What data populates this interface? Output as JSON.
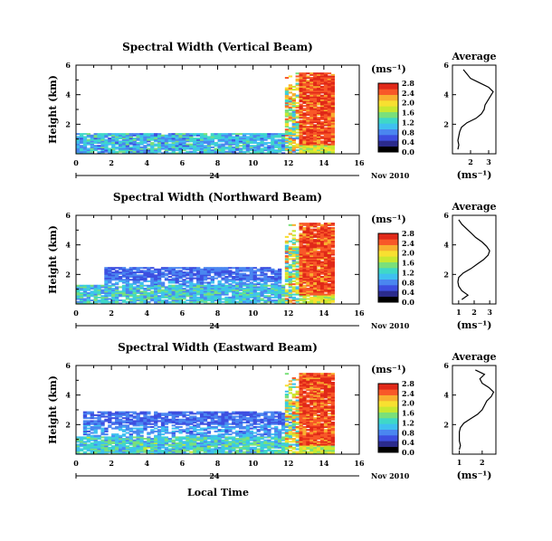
{
  "figure": {
    "xlabel": "Local Time",
    "date_day": "24",
    "date_label": "Nov 2010"
  },
  "colors": {
    "palette": [
      "#000000",
      "#2b2b8c",
      "#3d4fe0",
      "#4a86f0",
      "#3fc0f0",
      "#3fd8c8",
      "#7ae07a",
      "#c8e830",
      "#f8e030",
      "#f8b030",
      "#f85828",
      "#e02818"
    ]
  },
  "chart_data": [
    {
      "type": "heatmap",
      "title": "Spectral Width (Vertical Beam)",
      "ylabel": "Height (km)",
      "xlim": [
        0,
        16
      ],
      "ylim": [
        0,
        6
      ],
      "xticks": [
        "0",
        "2",
        "4",
        "6",
        "8",
        "10",
        "12",
        "14",
        "16"
      ],
      "yticks": [
        "2",
        "4",
        "6"
      ],
      "colorbar": {
        "unit": "(ms⁻¹)",
        "ticks": [
          "0.0",
          "0.4",
          "0.8",
          "1.2",
          "1.6",
          "2.0",
          "2.4",
          "2.8"
        ],
        "range": [
          0,
          2.8
        ]
      },
      "profile": {
        "title": "Average",
        "xlabel": "(ms⁻¹)",
        "xticks": [
          "2",
          "3"
        ],
        "xlim": [
          1.0,
          3.4
        ],
        "yticks": [
          "2",
          "4",
          "6"
        ],
        "ylim": [
          0,
          6
        ],
        "heights": [
          0.3,
          0.6,
          0.9,
          1.2,
          1.5,
          1.8,
          2.1,
          2.4,
          2.7,
          3.0,
          3.3,
          3.6,
          3.9,
          4.2,
          4.5,
          4.8,
          5.1,
          5.4,
          5.7
        ],
        "values": [
          1.3,
          1.35,
          1.3,
          1.35,
          1.4,
          1.5,
          1.8,
          2.3,
          2.6,
          2.75,
          2.8,
          2.95,
          3.1,
          3.25,
          3.0,
          2.5,
          2.0,
          1.8,
          1.6
        ]
      },
      "field": {
        "base_top": 1.4,
        "upper_top": 0,
        "upper_start": 0,
        "upper_end": 0,
        "base_val": 0.9
      }
    },
    {
      "type": "heatmap",
      "title": "Spectral Width (Northward Beam)",
      "ylabel": "Height (km)",
      "xlim": [
        0,
        16
      ],
      "ylim": [
        0,
        6
      ],
      "xticks": [
        "0",
        "2",
        "4",
        "6",
        "8",
        "10",
        "12",
        "14",
        "16"
      ],
      "yticks": [
        "2",
        "4",
        "6"
      ],
      "colorbar": {
        "unit": "(ms⁻¹)",
        "ticks": [
          "0.0",
          "0.4",
          "0.8",
          "1.2",
          "1.6",
          "2.0",
          "2.4",
          "2.8"
        ],
        "range": [
          0,
          2.8
        ]
      },
      "profile": {
        "title": "Average",
        "xlabel": "(ms⁻¹)",
        "xticks": [
          "1",
          "2",
          "3"
        ],
        "xlim": [
          0.6,
          3.4
        ],
        "yticks": [
          "2",
          "4",
          "6"
        ],
        "ylim": [
          0,
          6
        ],
        "heights": [
          0.3,
          0.6,
          0.9,
          1.2,
          1.5,
          1.8,
          2.1,
          2.4,
          2.7,
          3.0,
          3.3,
          3.6,
          3.9,
          4.2,
          4.5,
          4.8,
          5.1,
          5.4,
          5.7
        ],
        "values": [
          1.2,
          1.6,
          1.2,
          1.0,
          0.95,
          1.0,
          1.3,
          1.8,
          2.2,
          2.6,
          2.9,
          3.0,
          2.8,
          2.5,
          2.1,
          1.8,
          1.5,
          1.2,
          1.0
        ]
      },
      "field": {
        "base_top": 1.3,
        "upper_top": 2.5,
        "upper_start": 1.5,
        "upper_end": 11.5,
        "base_val": 1.0
      }
    },
    {
      "type": "heatmap",
      "title": "Spectral Width (Eastward Beam)",
      "ylabel": "Height (km)",
      "xlim": [
        0,
        16
      ],
      "ylim": [
        0,
        6
      ],
      "xticks": [
        "0",
        "2",
        "4",
        "6",
        "8",
        "10",
        "12",
        "14",
        "16"
      ],
      "yticks": [
        "2",
        "4",
        "6"
      ],
      "colorbar": {
        "unit": "(ms⁻¹)",
        "ticks": [
          "0.0",
          "0.4",
          "0.8",
          "1.2",
          "1.6",
          "2.0",
          "2.4",
          "2.8"
        ],
        "range": [
          0,
          2.8
        ]
      },
      "profile": {
        "title": "Average",
        "xlabel": "(ms⁻¹)",
        "xticks": [
          "1",
          "2"
        ],
        "xlim": [
          0.7,
          2.6
        ],
        "yticks": [
          "2",
          "4",
          "6"
        ],
        "ylim": [
          0,
          6
        ],
        "heights": [
          0.3,
          0.6,
          0.9,
          1.2,
          1.5,
          1.8,
          2.1,
          2.4,
          2.7,
          3.0,
          3.3,
          3.6,
          3.9,
          4.2,
          4.5,
          4.8,
          5.1,
          5.4,
          5.7
        ],
        "values": [
          1.0,
          1.05,
          1.0,
          1.0,
          1.0,
          1.05,
          1.2,
          1.5,
          1.8,
          2.0,
          2.1,
          2.2,
          2.4,
          2.5,
          2.3,
          2.0,
          1.9,
          2.1,
          1.7
        ]
      },
      "field": {
        "base_top": 1.2,
        "upper_top": 2.9,
        "upper_start": 0.2,
        "upper_end": 11.8,
        "base_val": 1.1
      }
    }
  ]
}
